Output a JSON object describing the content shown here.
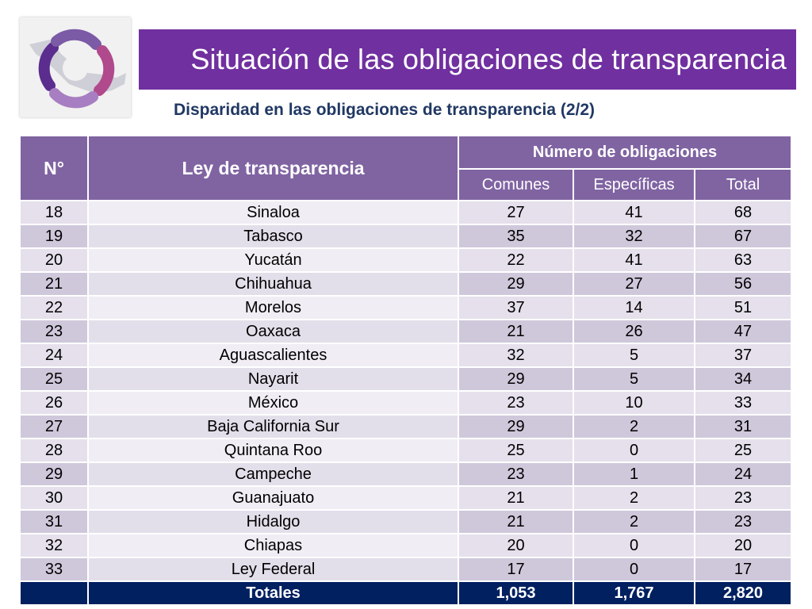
{
  "title": "Situación de las obligaciones de transparencia",
  "subtitle": "Disparidad en las obligaciones de transparencia (2/2)",
  "colors": {
    "title_bar": "#7030a0",
    "header": "#8064a2",
    "subtitle": "#203864",
    "totals_row": "#002060"
  },
  "logo": {
    "icon": "mexico-map-swirl-logo"
  },
  "table": {
    "headers": {
      "num": "N°",
      "ley": "Ley de transparencia",
      "group": "Número de obligaciones",
      "comunes": "Comunes",
      "especificas": "Específicas",
      "total": "Total"
    },
    "rows": [
      {
        "num": "18",
        "ley": "Sinaloa",
        "comunes": "27",
        "especificas": "41",
        "total": "68"
      },
      {
        "num": "19",
        "ley": "Tabasco",
        "comunes": "35",
        "especificas": "32",
        "total": "67"
      },
      {
        "num": "20",
        "ley": "Yucatán",
        "comunes": "22",
        "especificas": "41",
        "total": "63"
      },
      {
        "num": "21",
        "ley": "Chihuahua",
        "comunes": "29",
        "especificas": "27",
        "total": "56"
      },
      {
        "num": "22",
        "ley": "Morelos",
        "comunes": "37",
        "especificas": "14",
        "total": "51"
      },
      {
        "num": "23",
        "ley": "Oaxaca",
        "comunes": "21",
        "especificas": "26",
        "total": "47"
      },
      {
        "num": "24",
        "ley": "Aguascalientes",
        "comunes": "32",
        "especificas": "5",
        "total": "37"
      },
      {
        "num": "25",
        "ley": "Nayarit",
        "comunes": "29",
        "especificas": "5",
        "total": "34"
      },
      {
        "num": "26",
        "ley": "México",
        "comunes": "23",
        "especificas": "10",
        "total": "33"
      },
      {
        "num": "27",
        "ley": "Baja California Sur",
        "comunes": "29",
        "especificas": "2",
        "total": "31"
      },
      {
        "num": "28",
        "ley": "Quintana Roo",
        "comunes": "25",
        "especificas": "0",
        "total": "25"
      },
      {
        "num": "29",
        "ley": "Campeche",
        "comunes": "23",
        "especificas": "1",
        "total": "24"
      },
      {
        "num": "30",
        "ley": "Guanajuato",
        "comunes": "21",
        "especificas": "2",
        "total": "23"
      },
      {
        "num": "31",
        "ley": "Hidalgo",
        "comunes": "21",
        "especificas": "2",
        "total": "23"
      },
      {
        "num": "32",
        "ley": "Chiapas",
        "comunes": "20",
        "especificas": "0",
        "total": "20"
      },
      {
        "num": "33",
        "ley": "Ley Federal",
        "comunes": "17",
        "especificas": "0",
        "total": "17"
      }
    ],
    "totals": {
      "num": "",
      "label": "Totales",
      "comunes": "1,053",
      "especificas": "1,767",
      "total": "2,820"
    }
  }
}
